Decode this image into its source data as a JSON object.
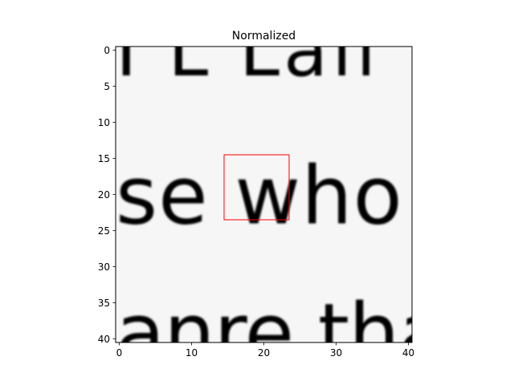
{
  "chart_data": {
    "type": "heatmap",
    "title": "Normalized",
    "xlabel": "",
    "ylabel": "",
    "colormap": "gray",
    "xlim": [
      -0.5,
      40.5
    ],
    "ylim": [
      40.5,
      -0.5
    ],
    "x_ticks": [
      0,
      10,
      20,
      30,
      40
    ],
    "y_ticks": [
      0,
      5,
      10,
      15,
      20,
      25,
      30,
      35,
      40
    ],
    "grid": false,
    "shape": [
      41,
      41
    ],
    "image_text_rows": [
      "I L Lall",
      "se who",
      "anre that"
    ],
    "highlight_box": {
      "x0": 14.5,
      "y0": 14.5,
      "x1": 23.5,
      "y1": 23.5,
      "color": "#ff0000"
    }
  }
}
